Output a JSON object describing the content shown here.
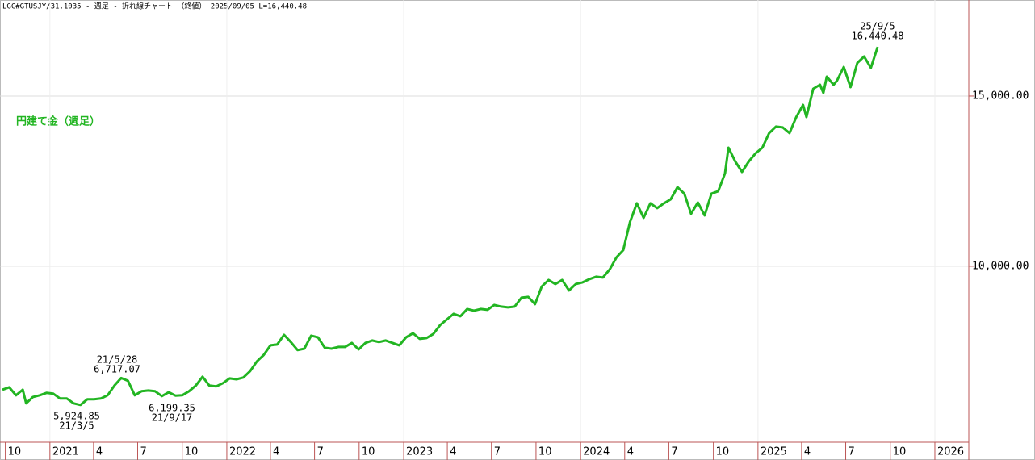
{
  "chart_data": {
    "type": "line",
    "title": "LGC#GTUSJY/31.1035 - 週足 - 折れ線チャート （終値） 2025/09/05 L=16,440.48",
    "legend": "円建て金（週足）",
    "x": [
      "2020-09-25",
      "2020-10-09",
      "2020-10-23",
      "2020-11-06",
      "2020-11-13",
      "2020-11-27",
      "2020-12-11",
      "2020-12-25",
      "2021-01-08",
      "2021-01-22",
      "2021-02-05",
      "2021-02-19",
      "2021-03-05",
      "2021-03-19",
      "2021-04-02",
      "2021-04-16",
      "2021-04-30",
      "2021-05-14",
      "2021-05-28",
      "2021-06-11",
      "2021-06-25",
      "2021-07-09",
      "2021-07-23",
      "2021-08-06",
      "2021-08-20",
      "2021-09-03",
      "2021-09-17",
      "2021-10-01",
      "2021-10-15",
      "2021-10-29",
      "2021-11-12",
      "2021-11-26",
      "2021-12-10",
      "2021-12-24",
      "2022-01-07",
      "2022-01-21",
      "2022-02-04",
      "2022-02-18",
      "2022-03-04",
      "2022-03-18",
      "2022-04-01",
      "2022-04-15",
      "2022-04-29",
      "2022-05-13",
      "2022-05-27",
      "2022-06-10",
      "2022-06-24",
      "2022-07-08",
      "2022-07-22",
      "2022-08-05",
      "2022-08-19",
      "2022-09-02",
      "2022-09-16",
      "2022-09-30",
      "2022-10-14",
      "2022-10-28",
      "2022-11-11",
      "2022-11-25",
      "2022-12-09",
      "2022-12-23",
      "2023-01-06",
      "2023-01-20",
      "2023-02-03",
      "2023-02-17",
      "2023-03-03",
      "2023-03-17",
      "2023-03-31",
      "2023-04-14",
      "2023-04-28",
      "2023-05-12",
      "2023-05-26",
      "2023-06-09",
      "2023-06-23",
      "2023-07-07",
      "2023-07-21",
      "2023-08-04",
      "2023-08-18",
      "2023-09-01",
      "2023-09-15",
      "2023-09-29",
      "2023-10-13",
      "2023-10-27",
      "2023-11-10",
      "2023-11-24",
      "2023-12-08",
      "2023-12-22",
      "2024-01-05",
      "2024-01-19",
      "2024-02-02",
      "2024-02-16",
      "2024-03-01",
      "2024-03-15",
      "2024-03-29",
      "2024-04-12",
      "2024-04-26",
      "2024-05-10",
      "2024-05-24",
      "2024-06-07",
      "2024-06-21",
      "2024-07-05",
      "2024-07-19",
      "2024-08-02",
      "2024-08-16",
      "2024-08-30",
      "2024-09-13",
      "2024-09-27",
      "2024-10-11",
      "2024-10-25",
      "2024-11-01",
      "2024-11-15",
      "2024-11-29",
      "2024-12-13",
      "2024-12-27",
      "2025-01-10",
      "2025-01-24",
      "2025-02-07",
      "2025-02-21",
      "2025-03-07",
      "2025-03-21",
      "2025-04-04",
      "2025-04-11",
      "2025-04-25",
      "2025-05-09",
      "2025-05-16",
      "2025-05-23",
      "2025-06-06",
      "2025-06-13",
      "2025-06-27",
      "2025-07-11",
      "2025-07-25",
      "2025-08-08",
      "2025-08-22",
      "2025-09-05"
    ],
    "series": [
      {
        "name": "円建て金（週足）",
        "color": "#22b522",
        "values": [
          6374,
          6445,
          6209,
          6374,
          5972,
          6160,
          6209,
          6280,
          6256,
          6114,
          6114,
          5972,
          5924.85,
          6090,
          6090,
          6114,
          6209,
          6493,
          6717.07,
          6635,
          6209,
          6327,
          6350,
          6327,
          6185,
          6300,
          6199.35,
          6209,
          6327,
          6493,
          6754,
          6493,
          6470,
          6564,
          6706,
          6680,
          6730,
          6919,
          7204,
          7393,
          7678,
          7700,
          7986,
          7773,
          7536,
          7580,
          7962,
          7915,
          7607,
          7580,
          7630,
          7630,
          7749,
          7559,
          7749,
          7820,
          7773,
          7820,
          7749,
          7678,
          7915,
          8033,
          7867,
          7890,
          8010,
          8270,
          8436,
          8602,
          8530,
          8744,
          8697,
          8744,
          8720,
          8863,
          8815,
          8792,
          8815,
          9076,
          9100,
          8886,
          9408,
          9597,
          9479,
          9597,
          9289,
          9479,
          9526,
          9621,
          9692,
          9668,
          9905,
          10261,
          10474,
          11303,
          11848,
          11422,
          11848,
          11706,
          11848,
          11967,
          12322,
          12133,
          11540,
          11872,
          11493,
          12133,
          12204,
          12725,
          13483,
          13080,
          12772,
          13080,
          13317,
          13483,
          13910,
          14100,
          14076,
          13910,
          14384,
          14739,
          14384,
          15213,
          15332,
          15095,
          15569,
          15332,
          15450,
          15853,
          15260,
          15972,
          16161,
          15829,
          16440.48
        ]
      }
    ],
    "xlim": [
      "2020-09-20",
      "2026-03-12"
    ],
    "xticks": [
      {
        "value": "2020-10",
        "label": "10"
      },
      {
        "value": "2021-01",
        "label": "2021"
      },
      {
        "value": "2021-04",
        "label": "4"
      },
      {
        "value": "2021-07",
        "label": "7"
      },
      {
        "value": "2021-10",
        "label": "10"
      },
      {
        "value": "2022-01",
        "label": "2022"
      },
      {
        "value": "2022-04",
        "label": "4"
      },
      {
        "value": "2022-07",
        "label": "7"
      },
      {
        "value": "2022-10",
        "label": "10"
      },
      {
        "value": "2023-01",
        "label": "2023"
      },
      {
        "value": "2023-04",
        "label": "4"
      },
      {
        "value": "2023-07",
        "label": "7"
      },
      {
        "value": "2023-10",
        "label": "10"
      },
      {
        "value": "2024-01",
        "label": "2024"
      },
      {
        "value": "2024-04",
        "label": "4"
      },
      {
        "value": "2024-07",
        "label": "7"
      },
      {
        "value": "2024-10",
        "label": "10"
      },
      {
        "value": "2025-01",
        "label": "2025"
      },
      {
        "value": "2025-04",
        "label": "4"
      },
      {
        "value": "2025-07",
        "label": "7"
      },
      {
        "value": "2025-10",
        "label": "10"
      },
      {
        "value": "2026-01",
        "label": "2026"
      }
    ],
    "ylim": [
      4830,
      17820
    ],
    "yticks": [
      {
        "value": 10000,
        "label": "10,000.00"
      },
      {
        "value": 15000,
        "label": "15,000.00"
      }
    ],
    "grid": true,
    "annotations": [
      {
        "date": "21/5/28",
        "value": "6,717.07"
      },
      {
        "date": "21/3/5",
        "value": "5,924.85"
      },
      {
        "date": "21/9/17",
        "value": "6,199.35"
      },
      {
        "date": "25/9/5",
        "value": "16,440.48"
      }
    ]
  }
}
